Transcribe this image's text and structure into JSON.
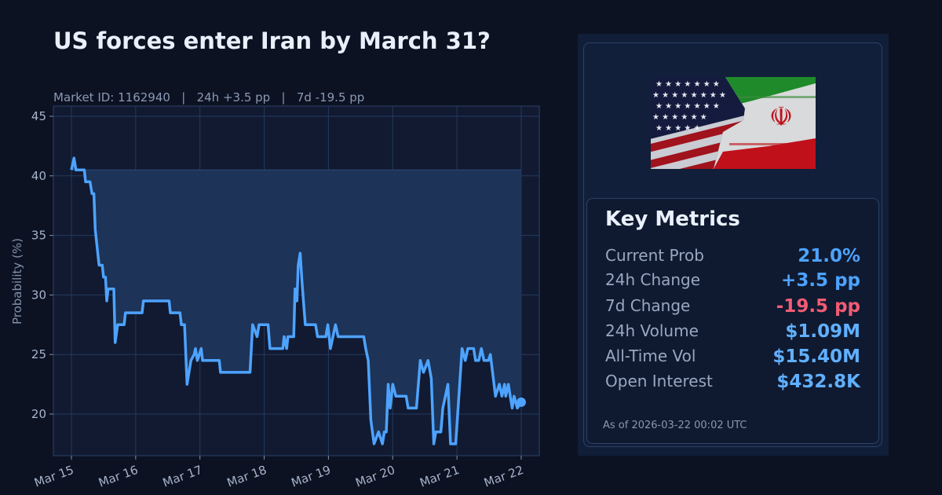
{
  "header": {
    "title": "US forces enter Iran by March 31?",
    "subtitle": "Market ID: 1162940   |   24h +3.5 pp   |   7d -19.5 pp",
    "market_id": "1162940",
    "change_24h": "24h +3.5 pp",
    "change_7d": "7d -19.5 pp"
  },
  "chart_data": {
    "type": "line",
    "title": "US forces enter Iran by March 31?",
    "xlabel": "",
    "ylabel": "Probability (%)",
    "ylim": [
      16.5,
      45.9
    ],
    "xlim": [
      "Mar 14 ~18:00",
      "Mar 22 ~03:00"
    ],
    "grid": true,
    "legend": null,
    "x_tick_labels": [
      "Mar 15",
      "Mar 16",
      "Mar 17",
      "Mar 18",
      "Mar 19",
      "Mar 20",
      "Mar 21",
      "Mar 22"
    ],
    "y_ticks": [
      20,
      25,
      30,
      35,
      40,
      45
    ],
    "fill_baseline": 40.5,
    "line_color": "#4da3ff",
    "fill_color": "#1d3357",
    "end_marker": {
      "day": 7.0,
      "value": 21.0
    },
    "series": [
      {
        "name": "Probability",
        "points_day_offset_from_mar15": [
          [
            0.0,
            40.5
          ],
          [
            0.04,
            41.5
          ],
          [
            0.07,
            40.5
          ],
          [
            0.2,
            40.5
          ],
          [
            0.22,
            39.5
          ],
          [
            0.29,
            39.5
          ],
          [
            0.32,
            38.5
          ],
          [
            0.35,
            38.5
          ],
          [
            0.37,
            35.5
          ],
          [
            0.43,
            32.5
          ],
          [
            0.48,
            32.5
          ],
          [
            0.5,
            31.5
          ],
          [
            0.53,
            31.5
          ],
          [
            0.55,
            29.5
          ],
          [
            0.57,
            30.5
          ],
          [
            0.66,
            30.5
          ],
          [
            0.68,
            26.0
          ],
          [
            0.72,
            27.5
          ],
          [
            0.82,
            27.5
          ],
          [
            0.84,
            28.5
          ],
          [
            1.1,
            28.5
          ],
          [
            1.12,
            29.5
          ],
          [
            1.52,
            29.5
          ],
          [
            1.54,
            28.5
          ],
          [
            1.69,
            28.5
          ],
          [
            1.71,
            27.5
          ],
          [
            1.76,
            27.5
          ],
          [
            1.8,
            22.5
          ],
          [
            1.86,
            24.5
          ],
          [
            1.91,
            25.0
          ],
          [
            1.93,
            25.5
          ],
          [
            1.96,
            24.5
          ],
          [
            2.02,
            25.5
          ],
          [
            2.04,
            24.5
          ],
          [
            2.3,
            24.5
          ],
          [
            2.32,
            23.5
          ],
          [
            2.78,
            23.5
          ],
          [
            2.82,
            27.5
          ],
          [
            2.89,
            26.5
          ],
          [
            2.92,
            27.5
          ],
          [
            3.06,
            27.5
          ],
          [
            3.09,
            25.5
          ],
          [
            3.29,
            25.5
          ],
          [
            3.31,
            26.5
          ],
          [
            3.35,
            25.5
          ],
          [
            3.37,
            26.5
          ],
          [
            3.46,
            26.5
          ],
          [
            3.48,
            30.5
          ],
          [
            3.51,
            29.5
          ],
          [
            3.53,
            32.5
          ],
          [
            3.56,
            33.5
          ],
          [
            3.59,
            31.0
          ],
          [
            3.64,
            27.5
          ],
          [
            3.8,
            27.5
          ],
          [
            3.83,
            26.5
          ],
          [
            3.96,
            26.5
          ],
          [
            3.99,
            27.5
          ],
          [
            4.03,
            25.5
          ],
          [
            4.11,
            27.5
          ],
          [
            4.15,
            26.5
          ],
          [
            4.55,
            26.5
          ],
          [
            4.58,
            25.5
          ],
          [
            4.62,
            24.5
          ],
          [
            4.66,
            19.5
          ],
          [
            4.71,
            17.5
          ],
          [
            4.78,
            18.5
          ],
          [
            4.84,
            17.5
          ],
          [
            4.87,
            18.5
          ],
          [
            4.9,
            18.5
          ],
          [
            4.93,
            22.5
          ],
          [
            4.96,
            20.5
          ],
          [
            5.0,
            22.5
          ],
          [
            5.05,
            21.5
          ],
          [
            5.21,
            21.5
          ],
          [
            5.24,
            20.5
          ],
          [
            5.37,
            20.5
          ],
          [
            5.43,
            24.5
          ],
          [
            5.48,
            23.5
          ],
          [
            5.55,
            24.5
          ],
          [
            5.6,
            23.0
          ],
          [
            5.64,
            17.5
          ],
          [
            5.67,
            18.5
          ],
          [
            5.75,
            18.5
          ],
          [
            5.78,
            20.5
          ],
          [
            5.82,
            21.5
          ],
          [
            5.86,
            22.5
          ],
          [
            5.9,
            17.5
          ],
          [
            5.98,
            17.5
          ],
          [
            6.08,
            25.5
          ],
          [
            6.13,
            24.5
          ],
          [
            6.17,
            25.5
          ],
          [
            6.26,
            25.5
          ],
          [
            6.29,
            24.5
          ],
          [
            6.34,
            24.5
          ],
          [
            6.38,
            25.5
          ],
          [
            6.42,
            24.5
          ],
          [
            6.49,
            24.5
          ],
          [
            6.52,
            25.0
          ],
          [
            6.6,
            21.5
          ],
          [
            6.66,
            22.5
          ],
          [
            6.7,
            21.5
          ],
          [
            6.74,
            22.5
          ],
          [
            6.76,
            21.5
          ],
          [
            6.8,
            22.5
          ],
          [
            6.83,
            21.5
          ],
          [
            6.86,
            20.5
          ],
          [
            6.89,
            21.5
          ],
          [
            6.94,
            20.5
          ],
          [
            7.0,
            21.0
          ]
        ]
      }
    ]
  },
  "panel": {
    "image_alt": "US and Iran flags on cracked wall",
    "metrics_title": "Key Metrics",
    "metrics": [
      {
        "label": "Current Prob",
        "value": "21.0%",
        "color": "#4da3ff"
      },
      {
        "label": "24h Change",
        "value": "+3.5 pp",
        "color": "#4da3ff"
      },
      {
        "label": "7d Change",
        "value": "-19.5 pp",
        "color": "#f25c74"
      },
      {
        "label": "24h Volume",
        "value": "$1.09M",
        "color": "#61b0ff"
      },
      {
        "label": "All-Time Vol",
        "value": "$15.40M",
        "color": "#61b0ff"
      },
      {
        "label": "Open Interest",
        "value": "$432.8K",
        "color": "#61b0ff"
      }
    ],
    "as_of": "As of 2026-03-22 00:02 UTC"
  }
}
